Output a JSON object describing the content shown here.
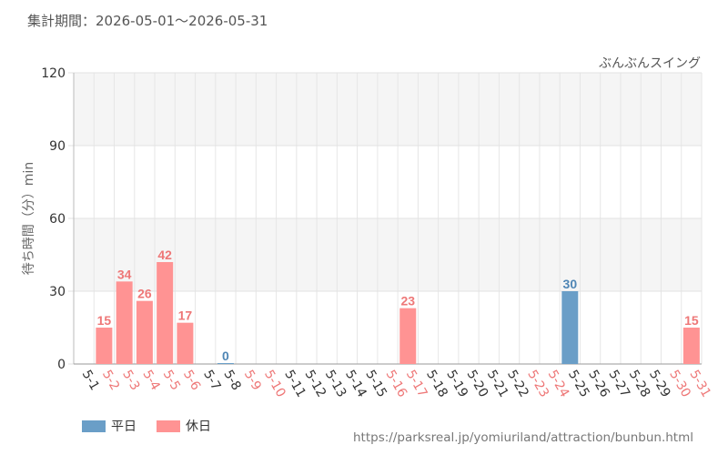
{
  "header": {
    "period_label": "集計期間：2026-05-01〜2026-05-31"
  },
  "footer": {
    "source_url": "https://parksreal.jp/yomiuriland/attraction/bunbun.html"
  },
  "legend": [
    {
      "label": "平日",
      "color": "#6a9ec7"
    },
    {
      "label": "休日",
      "color": "#ff9393"
    }
  ],
  "chart_data": {
    "type": "bar",
    "title": "ぶんぶんスイング",
    "ylabel": "待ち時間（分）min",
    "ylim": [
      0,
      120
    ],
    "yticks": [
      "0",
      "30",
      "60",
      "90",
      "120"
    ],
    "categories": [
      "5-1",
      "5-2",
      "5-3",
      "5-4",
      "5-5",
      "5-6",
      "5-7",
      "5-8",
      "5-9",
      "5-10",
      "5-11",
      "5-12",
      "5-13",
      "5-14",
      "5-15",
      "5-16",
      "5-17",
      "5-18",
      "5-19",
      "5-20",
      "5-21",
      "5-22",
      "5-23",
      "5-24",
      "5-25",
      "5-26",
      "5-27",
      "5-28",
      "5-29",
      "5-30",
      "5-31"
    ],
    "day_type": [
      "weekday",
      "holiday",
      "holiday",
      "holiday",
      "holiday",
      "holiday",
      "weekday",
      "weekday",
      "holiday",
      "holiday",
      "weekday",
      "weekday",
      "weekday",
      "weekday",
      "weekday",
      "holiday",
      "holiday",
      "weekday",
      "weekday",
      "weekday",
      "weekday",
      "weekday",
      "holiday",
      "holiday",
      "weekday",
      "weekday",
      "weekday",
      "weekday",
      "weekday",
      "holiday",
      "holiday"
    ],
    "values": [
      null,
      15,
      34,
      26,
      42,
      17,
      null,
      0,
      null,
      null,
      null,
      null,
      null,
      null,
      null,
      null,
      23,
      null,
      null,
      null,
      null,
      null,
      null,
      null,
      30,
      null,
      null,
      null,
      null,
      null,
      15
    ],
    "value_labels": [
      "",
      "15",
      "34",
      "26",
      "42",
      "17",
      "",
      "0",
      "",
      "",
      "",
      "",
      "",
      "",
      "",
      "",
      "23",
      "",
      "",
      "",
      "",
      "",
      "",
      "",
      "30",
      "",
      "",
      "",
      "",
      "",
      "15"
    ],
    "colors": {
      "weekday": "#6a9ec7",
      "holiday": "#ff9393",
      "weekday_text": "#333333",
      "holiday_text": "#ee7777",
      "weekday_value": "#4f86b5",
      "holiday_value": "#ee7777"
    },
    "grid": true
  }
}
